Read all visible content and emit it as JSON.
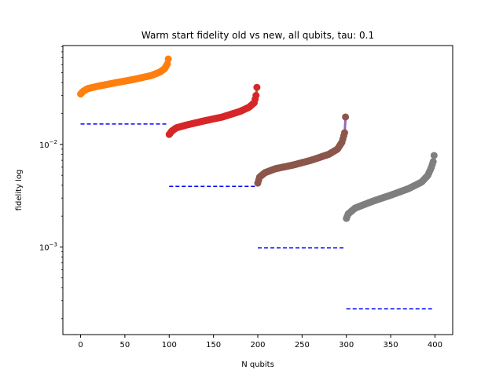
{
  "chart_data": {
    "type": "scatter",
    "title": "Warm start fidelity old vs new, all qubits, tau: 0.1",
    "xlabel": "N qubits",
    "ylabel": "fidelity log",
    "xlim": [
      -20,
      420
    ],
    "ylim": [
      0.00014,
      0.092
    ],
    "yscale": "log",
    "x_ticks": [
      0,
      50,
      100,
      150,
      200,
      250,
      300,
      350,
      400
    ],
    "y_ticks": [
      {
        "value": 0.01,
        "label": "10^-2"
      },
      {
        "value": 0.001,
        "label": "10^-3"
      }
    ],
    "grid": false,
    "legend": "none",
    "groups": [
      {
        "x_range": [
          0,
          99
        ],
        "curve": [
          [
            0,
            0.031
          ],
          [
            3,
            0.033
          ],
          [
            8,
            0.035
          ],
          [
            20,
            0.037
          ],
          [
            40,
            0.04
          ],
          [
            60,
            0.043
          ],
          [
            80,
            0.047
          ],
          [
            90,
            0.051
          ],
          [
            95,
            0.055
          ],
          [
            98,
            0.061
          ],
          [
            99,
            0.068
          ]
        ],
        "line_color": "#1f77b4",
        "point_color": "#ff7f0e",
        "baseline": {
          "value": 0.0158,
          "x_range": [
            0,
            98
          ]
        }
      },
      {
        "x_range": [
          100,
          199
        ],
        "curve": [
          [
            100,
            0.0125
          ],
          [
            103,
            0.0135
          ],
          [
            108,
            0.0145
          ],
          [
            120,
            0.0155
          ],
          [
            140,
            0.017
          ],
          [
            160,
            0.0185
          ],
          [
            180,
            0.021
          ],
          [
            190,
            0.023
          ],
          [
            196,
            0.0255
          ],
          [
            198,
            0.03
          ],
          [
            199,
            0.036
          ]
        ],
        "line_color": "#2ca02c",
        "point_color": "#d62728",
        "baseline": {
          "value": 0.0039,
          "x_range": [
            100,
            198
          ]
        }
      },
      {
        "x_range": [
          200,
          299
        ],
        "curve": [
          [
            200,
            0.0042
          ],
          [
            202,
            0.0048
          ],
          [
            208,
            0.0053
          ],
          [
            220,
            0.0058
          ],
          [
            240,
            0.0063
          ],
          [
            260,
            0.007
          ],
          [
            280,
            0.008
          ],
          [
            290,
            0.009
          ],
          [
            295,
            0.0105
          ],
          [
            298,
            0.013
          ],
          [
            299,
            0.0185
          ]
        ],
        "line_color": "#9467bd",
        "point_color": "#8c564b",
        "baseline": {
          "value": 0.00098,
          "x_range": [
            200,
            298
          ]
        }
      },
      {
        "x_range": [
          300,
          399
        ],
        "curve": [
          [
            300,
            0.0019
          ],
          [
            302,
            0.0021
          ],
          [
            310,
            0.0024
          ],
          [
            330,
            0.0028
          ],
          [
            350,
            0.0032
          ],
          [
            370,
            0.0037
          ],
          [
            385,
            0.0043
          ],
          [
            392,
            0.005
          ],
          [
            396,
            0.006
          ],
          [
            398,
            0.0068
          ],
          [
            399,
            0.0078
          ]
        ],
        "line_color": "#e377c2",
        "point_color": "#7f7f7f",
        "baseline": {
          "value": 0.00025,
          "x_range": [
            300,
            398
          ]
        }
      }
    ],
    "baseline_color": "#0000ff"
  }
}
